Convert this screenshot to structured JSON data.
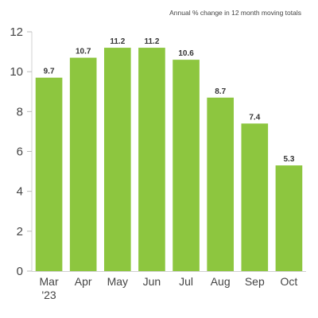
{
  "chart_data": {
    "type": "bar",
    "caption": "Annual % change in 12 month moving totals",
    "categories": [
      "Mar\n'23",
      "Apr",
      "May",
      "Jun",
      "Jul",
      "Aug",
      "Sep",
      "Oct"
    ],
    "values": [
      9.7,
      10.7,
      11.2,
      11.2,
      10.6,
      8.7,
      7.4,
      5.3
    ],
    "data_labels": [
      "9.7",
      "10.7",
      "11.2",
      "11.2",
      "10.6",
      "8.7",
      "7.4",
      "5.3"
    ],
    "yticks": [
      0,
      2,
      4,
      6,
      8,
      10,
      12
    ],
    "ylim": [
      0,
      12
    ],
    "bar_color": "#8dc63f",
    "gridlines": false,
    "legend": "none"
  }
}
